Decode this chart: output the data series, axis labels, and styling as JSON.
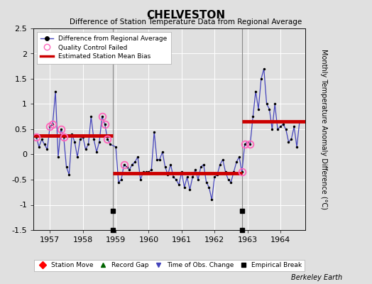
{
  "title": "CHELVESTON",
  "subtitle": "Difference of Station Temperature Data from Regional Average",
  "ylabel": "Monthly Temperature Anomaly Difference (°C)",
  "credit": "Berkeley Earth",
  "ylim": [
    -1.5,
    2.5
  ],
  "xlim": [
    1956.5,
    1964.75
  ],
  "xticks": [
    1957,
    1958,
    1959,
    1960,
    1961,
    1962,
    1963,
    1964
  ],
  "yticks": [
    -1.5,
    -1.0,
    -0.5,
    0.0,
    0.5,
    1.0,
    1.5,
    2.0,
    2.5
  ],
  "bg_color": "#e0e0e0",
  "plot_bg": "#e0e0e0",
  "line_color": "#4444bb",
  "marker_color": "#000000",
  "bias_color": "#cc0000",
  "qc_color": "#ff66bb",
  "segment_biases": [
    {
      "x_start": 1956.5,
      "x_end": 1958.917,
      "bias": 0.38
    },
    {
      "x_start": 1958.917,
      "x_end": 1962.833,
      "bias": -0.38
    },
    {
      "x_start": 1962.833,
      "x_end": 1964.75,
      "bias": 0.65
    }
  ],
  "break_times": [
    1958.917,
    1962.833
  ],
  "qc_failed_times": [
    1956.583,
    1957.0,
    1957.083,
    1957.333,
    1957.417,
    1958.583,
    1958.667,
    1958.75,
    1959.25,
    1962.833,
    1962.917,
    1963.083
  ],
  "data": [
    [
      1956.583,
      0.35
    ],
    [
      1956.667,
      0.15
    ],
    [
      1956.75,
      0.3
    ],
    [
      1956.833,
      0.2
    ],
    [
      1956.917,
      0.1
    ],
    [
      1957.0,
      0.55
    ],
    [
      1957.083,
      0.6
    ],
    [
      1957.167,
      1.25
    ],
    [
      1957.25,
      -0.05
    ],
    [
      1957.333,
      0.5
    ],
    [
      1957.417,
      0.35
    ],
    [
      1957.5,
      -0.25
    ],
    [
      1957.583,
      -0.4
    ],
    [
      1957.667,
      0.4
    ],
    [
      1957.75,
      0.25
    ],
    [
      1957.833,
      -0.05
    ],
    [
      1957.917,
      0.3
    ],
    [
      1958.0,
      0.35
    ],
    [
      1958.083,
      0.1
    ],
    [
      1958.167,
      0.2
    ],
    [
      1958.25,
      0.75
    ],
    [
      1958.333,
      0.3
    ],
    [
      1958.417,
      0.05
    ],
    [
      1958.5,
      0.25
    ],
    [
      1958.583,
      0.75
    ],
    [
      1958.667,
      0.6
    ],
    [
      1958.75,
      0.3
    ],
    [
      1958.833,
      0.2
    ],
    [
      1959.0,
      0.15
    ],
    [
      1959.083,
      -0.55
    ],
    [
      1959.167,
      -0.5
    ],
    [
      1959.25,
      -0.2
    ],
    [
      1959.333,
      -0.25
    ],
    [
      1959.417,
      -0.3
    ],
    [
      1959.5,
      -0.2
    ],
    [
      1959.583,
      -0.15
    ],
    [
      1959.667,
      -0.05
    ],
    [
      1959.75,
      -0.5
    ],
    [
      1959.833,
      -0.35
    ],
    [
      1959.917,
      -0.35
    ],
    [
      1960.0,
      -0.35
    ],
    [
      1960.083,
      -0.3
    ],
    [
      1960.167,
      0.45
    ],
    [
      1960.25,
      -0.1
    ],
    [
      1960.333,
      -0.1
    ],
    [
      1960.417,
      0.05
    ],
    [
      1960.5,
      -0.25
    ],
    [
      1960.583,
      -0.4
    ],
    [
      1960.667,
      -0.2
    ],
    [
      1960.75,
      -0.45
    ],
    [
      1960.833,
      -0.5
    ],
    [
      1960.917,
      -0.6
    ],
    [
      1961.0,
      -0.35
    ],
    [
      1961.083,
      -0.65
    ],
    [
      1961.167,
      -0.45
    ],
    [
      1961.25,
      -0.7
    ],
    [
      1961.333,
      -0.45
    ],
    [
      1961.417,
      -0.3
    ],
    [
      1961.5,
      -0.5
    ],
    [
      1961.583,
      -0.25
    ],
    [
      1961.667,
      -0.2
    ],
    [
      1961.75,
      -0.55
    ],
    [
      1961.833,
      -0.65
    ],
    [
      1961.917,
      -0.9
    ],
    [
      1962.0,
      -0.45
    ],
    [
      1962.083,
      -0.4
    ],
    [
      1962.167,
      -0.2
    ],
    [
      1962.25,
      -0.1
    ],
    [
      1962.333,
      -0.35
    ],
    [
      1962.417,
      -0.5
    ],
    [
      1962.5,
      -0.55
    ],
    [
      1962.583,
      -0.35
    ],
    [
      1962.667,
      -0.15
    ],
    [
      1962.75,
      -0.05
    ],
    [
      1962.833,
      -0.35
    ],
    [
      1962.917,
      0.2
    ],
    [
      1963.0,
      0.25
    ],
    [
      1963.083,
      0.2
    ],
    [
      1963.167,
      0.75
    ],
    [
      1963.25,
      1.25
    ],
    [
      1963.333,
      0.9
    ],
    [
      1963.417,
      1.5
    ],
    [
      1963.5,
      1.7
    ],
    [
      1963.583,
      1.0
    ],
    [
      1963.667,
      0.9
    ],
    [
      1963.75,
      0.5
    ],
    [
      1963.833,
      1.0
    ],
    [
      1963.917,
      0.5
    ],
    [
      1964.0,
      0.55
    ],
    [
      1964.083,
      0.6
    ],
    [
      1964.167,
      0.5
    ],
    [
      1964.25,
      0.25
    ],
    [
      1964.333,
      0.3
    ],
    [
      1964.417,
      0.55
    ],
    [
      1964.5,
      0.15
    ],
    [
      1964.583,
      0.65
    ]
  ]
}
